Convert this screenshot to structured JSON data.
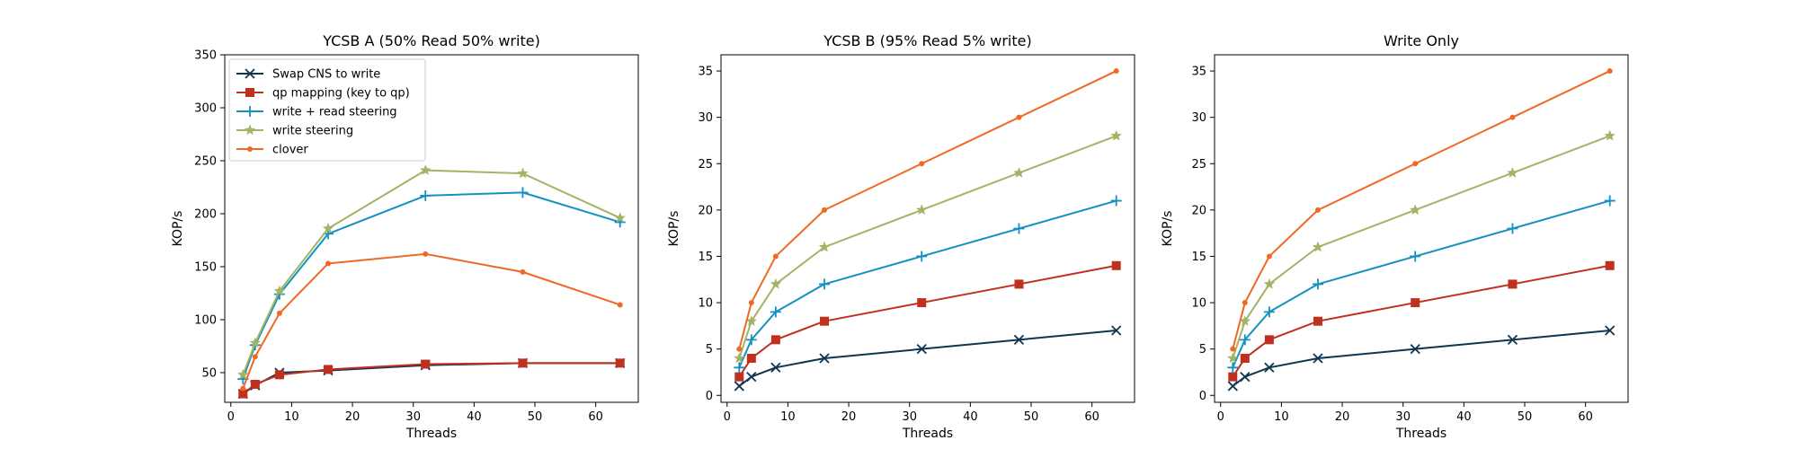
{
  "chart_data": [
    {
      "type": "line",
      "title": "YCSB A (50% Read 50% write)",
      "xlabel": "Threads",
      "ylabel": "KOP/s",
      "xlim": [
        -1,
        67
      ],
      "ylim": [
        22,
        350
      ],
      "xticks": [
        0,
        10,
        20,
        30,
        40,
        50,
        60
      ],
      "yticks": [
        50,
        100,
        150,
        200,
        250,
        300,
        350
      ],
      "x": [
        2,
        4,
        8,
        16,
        32,
        48,
        64
      ],
      "legend": {
        "show": true,
        "position": "upper-left"
      },
      "series": [
        {
          "name": "Swap CNS to write",
          "color": "#0e3650",
          "marker": "x",
          "values": [
            30,
            38,
            50,
            52,
            57,
            59,
            59
          ]
        },
        {
          "name": "qp mapping (key to qp)",
          "color": "#c0301f",
          "marker": "s",
          "values": [
            30,
            39,
            48,
            53,
            58,
            59,
            59
          ]
        },
        {
          "name": "write + read steering",
          "color": "#1491c1",
          "marker": "+",
          "values": [
            44,
            76,
            124,
            181,
            217,
            220,
            192
          ]
        },
        {
          "name": "write steering",
          "color": "#a2b466",
          "marker": "*",
          "values": [
            48,
            78,
            127,
            186,
            241,
            238,
            196
          ]
        },
        {
          "name": "clover",
          "color": "#ef6924",
          "marker": ".",
          "values": [
            35,
            65,
            106,
            153,
            162,
            145,
            114
          ]
        }
      ]
    },
    {
      "type": "line",
      "title": "YCSB B (95% Read 5% write)",
      "xlabel": "Threads",
      "ylabel": "KOP/s",
      "xlim": [
        -1,
        67
      ],
      "ylim": [
        -0.75,
        36.75
      ],
      "xticks": [
        0,
        10,
        20,
        30,
        40,
        50,
        60
      ],
      "yticks": [
        0,
        5,
        10,
        15,
        20,
        25,
        30,
        35
      ],
      "x": [
        2,
        4,
        8,
        16,
        32,
        48,
        64
      ],
      "legend": {
        "show": false
      },
      "series": [
        {
          "name": "Swap CNS to write",
          "color": "#0e3650",
          "marker": "x",
          "values": [
            1,
            2,
            3,
            4,
            5,
            6,
            7
          ]
        },
        {
          "name": "qp mapping (key to qp)",
          "color": "#c0301f",
          "marker": "s",
          "values": [
            2,
            4,
            6,
            8,
            10,
            12,
            14
          ]
        },
        {
          "name": "write + read steering",
          "color": "#1491c1",
          "marker": "+",
          "values": [
            3,
            6,
            9,
            12,
            15,
            18,
            21
          ]
        },
        {
          "name": "write steering",
          "color": "#a2b466",
          "marker": "*",
          "values": [
            4,
            8,
            12,
            16,
            20,
            24,
            28
          ]
        },
        {
          "name": "clover",
          "color": "#ef6924",
          "marker": ".",
          "values": [
            5,
            10,
            15,
            20,
            25,
            30,
            35
          ]
        }
      ]
    },
    {
      "type": "line",
      "title": "Write Only",
      "xlabel": "Threads",
      "ylabel": "KOP/s",
      "xlim": [
        -1,
        67
      ],
      "ylim": [
        -0.75,
        36.75
      ],
      "xticks": [
        0,
        10,
        20,
        30,
        40,
        50,
        60
      ],
      "yticks": [
        0,
        5,
        10,
        15,
        20,
        25,
        30,
        35
      ],
      "x": [
        2,
        4,
        8,
        16,
        32,
        48,
        64
      ],
      "legend": {
        "show": false
      },
      "series": [
        {
          "name": "Swap CNS to write",
          "color": "#0e3650",
          "marker": "x",
          "values": [
            1,
            2,
            3,
            4,
            5,
            6,
            7
          ]
        },
        {
          "name": "qp mapping (key to qp)",
          "color": "#c0301f",
          "marker": "s",
          "values": [
            2,
            4,
            6,
            8,
            10,
            12,
            14
          ]
        },
        {
          "name": "write + read steering",
          "color": "#1491c1",
          "marker": "+",
          "values": [
            3,
            6,
            9,
            12,
            15,
            18,
            21
          ]
        },
        {
          "name": "write steering",
          "color": "#a2b466",
          "marker": "*",
          "values": [
            4,
            8,
            12,
            16,
            20,
            24,
            28
          ]
        },
        {
          "name": "clover",
          "color": "#ef6924",
          "marker": ".",
          "values": [
            5,
            10,
            15,
            20,
            25,
            30,
            35
          ]
        }
      ]
    }
  ]
}
